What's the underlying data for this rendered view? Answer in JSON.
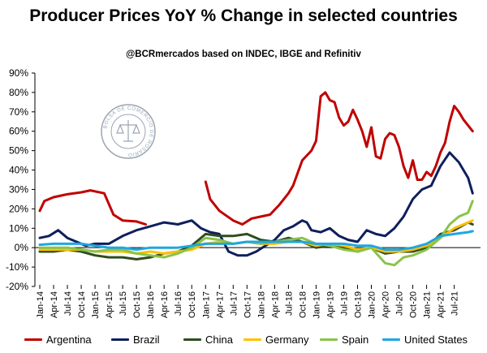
{
  "title": "Producer Prices YoY % Change in selected countries",
  "subtitle": "@BCRmercados based on INDEC, IBGE and Refinitiv",
  "chart_data": {
    "type": "line",
    "title": "Producer Prices YoY % Change in selected countries",
    "ylim": [
      -20,
      90
    ],
    "y_ticks": [
      "-20%",
      "-10%",
      "0%",
      "10%",
      "20%",
      "30%",
      "40%",
      "50%",
      "60%",
      "70%",
      "80%",
      "90%"
    ],
    "x_ticks": [
      "Jan-14",
      "Apr-14",
      "Jul-14",
      "Oct-14",
      "Jan-15",
      "Apr-15",
      "Jul-15",
      "Oct-15",
      "Jan-16",
      "Apr-16",
      "Jul-16",
      "Oct-16",
      "Jan-17",
      "Apr-17",
      "Jul-17",
      "Oct-17",
      "Jan-18",
      "Apr-18",
      "Jul-18",
      "Oct-18",
      "Jan-19",
      "Apr-19",
      "Jul-19",
      "Oct-19",
      "Jan-20",
      "Apr-20",
      "Jul-20",
      "Oct-20",
      "Jan-21",
      "Apr-21",
      "Jul-21"
    ],
    "grid": false,
    "legend_position": "bottom",
    "series": [
      {
        "name": "Argentina",
        "color": "#c00000",
        "points": [
          [
            "Jan-14",
            19
          ],
          [
            "Feb-14",
            24
          ],
          [
            "Apr-14",
            26
          ],
          [
            "Jul-14",
            27.5
          ],
          [
            "Oct-14",
            28.5
          ],
          [
            "Dec-14",
            29.5
          ],
          [
            "Mar-15",
            28
          ],
          [
            "May-15",
            17
          ],
          [
            "Jul-15",
            14
          ],
          [
            "Oct-15",
            13.5
          ],
          [
            "Dec-15",
            12
          ],
          [
            "Jan-17",
            34
          ],
          [
            "Feb-17",
            25
          ],
          [
            "Apr-17",
            19
          ],
          [
            "Jul-17",
            14
          ],
          [
            "Sep-17",
            12
          ],
          [
            "Nov-17",
            15
          ],
          [
            "Jan-18",
            16
          ],
          [
            "Mar-18",
            17
          ],
          [
            "May-18",
            22
          ],
          [
            "Jul-18",
            28
          ],
          [
            "Aug-18",
            32
          ],
          [
            "Oct-18",
            45
          ],
          [
            "Dec-18",
            50
          ],
          [
            "Jan-19",
            55
          ],
          [
            "Feb-19",
            78
          ],
          [
            "Mar-19",
            80
          ],
          [
            "Apr-19",
            76
          ],
          [
            "May-19",
            75
          ],
          [
            "Jun-19",
            67
          ],
          [
            "Jul-19",
            63
          ],
          [
            "Aug-19",
            65
          ],
          [
            "Sep-19",
            71
          ],
          [
            "Oct-19",
            66
          ],
          [
            "Nov-19",
            60
          ],
          [
            "Dec-19",
            52
          ],
          [
            "Jan-20",
            62
          ],
          [
            "Feb-20",
            47
          ],
          [
            "Mar-20",
            46
          ],
          [
            "Apr-20",
            56
          ],
          [
            "May-20",
            59
          ],
          [
            "Jun-20",
            58
          ],
          [
            "Jul-20",
            52
          ],
          [
            "Aug-20",
            42
          ],
          [
            "Sep-20",
            36
          ],
          [
            "Oct-20",
            45
          ],
          [
            "Nov-20",
            35
          ],
          [
            "Dec-20",
            35
          ],
          [
            "Jan-21",
            39
          ],
          [
            "Feb-21",
            37
          ],
          [
            "Mar-21",
            42
          ],
          [
            "Apr-21",
            49
          ],
          [
            "May-21",
            54
          ],
          [
            "Jun-21",
            65
          ],
          [
            "Jul-21",
            73
          ],
          [
            "Aug-21",
            70
          ],
          [
            "Sep-21",
            66
          ],
          [
            "Oct-21",
            63
          ],
          [
            "Nov-21",
            60
          ]
        ]
      },
      {
        "name": "Brazil",
        "color": "#0f1f5c",
        "points": [
          [
            "Jan-14",
            5
          ],
          [
            "Mar-14",
            6
          ],
          [
            "May-14",
            9
          ],
          [
            "Jul-14",
            5
          ],
          [
            "Sep-14",
            3
          ],
          [
            "Nov-14",
            1
          ],
          [
            "Jan-15",
            2
          ],
          [
            "Apr-15",
            2
          ],
          [
            "Jul-15",
            6
          ],
          [
            "Oct-15",
            9
          ],
          [
            "Jan-16",
            11
          ],
          [
            "Apr-16",
            13
          ],
          [
            "Jul-16",
            12
          ],
          [
            "Oct-16",
            14
          ],
          [
            "Dec-16",
            10
          ],
          [
            "Feb-17",
            8
          ],
          [
            "Apr-17",
            7
          ],
          [
            "Jun-17",
            -2
          ],
          [
            "Aug-17",
            -4
          ],
          [
            "Oct-17",
            -4
          ],
          [
            "Dec-17",
            -2
          ],
          [
            "Feb-18",
            1
          ],
          [
            "Apr-18",
            4
          ],
          [
            "Jun-18",
            9
          ],
          [
            "Aug-18",
            11
          ],
          [
            "Oct-18",
            14
          ],
          [
            "Nov-18",
            13
          ],
          [
            "Dec-18",
            9
          ],
          [
            "Feb-19",
            8
          ],
          [
            "Apr-19",
            10
          ],
          [
            "Jun-19",
            6
          ],
          [
            "Aug-19",
            4
          ],
          [
            "Oct-19",
            3
          ],
          [
            "Dec-19",
            9
          ],
          [
            "Feb-20",
            7
          ],
          [
            "Apr-20",
            6
          ],
          [
            "Jun-20",
            10
          ],
          [
            "Aug-20",
            16
          ],
          [
            "Oct-20",
            25
          ],
          [
            "Dec-20",
            30
          ],
          [
            "Feb-21",
            32
          ],
          [
            "Apr-21",
            42
          ],
          [
            "Jun-21",
            49
          ],
          [
            "Aug-21",
            44
          ],
          [
            "Oct-21",
            36
          ],
          [
            "Nov-21",
            28
          ]
        ]
      },
      {
        "name": "China",
        "color": "#2e4d1f",
        "points": [
          [
            "Jan-14",
            -2
          ],
          [
            "Apr-14",
            -2
          ],
          [
            "Jul-14",
            -1
          ],
          [
            "Oct-14",
            -2
          ],
          [
            "Jan-15",
            -4
          ],
          [
            "Apr-15",
            -5
          ],
          [
            "Jul-15",
            -5
          ],
          [
            "Oct-15",
            -6
          ],
          [
            "Jan-16",
            -5
          ],
          [
            "Apr-16",
            -3
          ],
          [
            "Jul-16",
            -2
          ],
          [
            "Oct-16",
            1
          ],
          [
            "Jan-17",
            7
          ],
          [
            "Apr-17",
            6
          ],
          [
            "Jul-17",
            6
          ],
          [
            "Oct-17",
            7
          ],
          [
            "Jan-18",
            4
          ],
          [
            "Apr-18",
            3
          ],
          [
            "Jul-18",
            5
          ],
          [
            "Oct-18",
            3
          ],
          [
            "Jan-19",
            0
          ],
          [
            "Apr-19",
            1
          ],
          [
            "Jul-19",
            0
          ],
          [
            "Oct-19",
            -2
          ],
          [
            "Jan-20",
            0
          ],
          [
            "Apr-20",
            -3
          ],
          [
            "Jul-20",
            -2
          ],
          [
            "Oct-20",
            -2
          ],
          [
            "Jan-21",
            0
          ],
          [
            "Apr-21",
            7
          ],
          [
            "Jul-21",
            9
          ],
          [
            "Oct-21",
            13
          ],
          [
            "Nov-21",
            12
          ]
        ]
      },
      {
        "name": "Germany",
        "color": "#ffc000",
        "points": [
          [
            "Jan-14",
            -1
          ],
          [
            "Apr-14",
            -1
          ],
          [
            "Jul-14",
            -1
          ],
          [
            "Oct-14",
            -1
          ],
          [
            "Jan-15",
            -2
          ],
          [
            "Apr-15",
            -2
          ],
          [
            "Jul-15",
            -2
          ],
          [
            "Oct-15",
            -3
          ],
          [
            "Jan-16",
            -2
          ],
          [
            "Apr-16",
            -3
          ],
          [
            "Jul-16",
            -2
          ],
          [
            "Oct-16",
            -1
          ],
          [
            "Jan-17",
            2
          ],
          [
            "Apr-17",
            3
          ],
          [
            "Jul-17",
            2
          ],
          [
            "Oct-17",
            3
          ],
          [
            "Jan-18",
            2
          ],
          [
            "Apr-18",
            2
          ],
          [
            "Jul-18",
            3
          ],
          [
            "Oct-18",
            3
          ],
          [
            "Jan-19",
            1
          ],
          [
            "Apr-19",
            2
          ],
          [
            "Jul-19",
            1
          ],
          [
            "Oct-19",
            -1
          ],
          [
            "Jan-20",
            0
          ],
          [
            "Apr-20",
            -2
          ],
          [
            "Jul-20",
            -2
          ],
          [
            "Oct-20",
            -1
          ],
          [
            "Jan-21",
            1
          ],
          [
            "Apr-21",
            5
          ],
          [
            "Jul-21",
            10
          ],
          [
            "Oct-21",
            13
          ],
          [
            "Nov-21",
            14
          ]
        ]
      },
      {
        "name": "Spain",
        "color": "#8ac34a",
        "points": [
          [
            "Jan-14",
            0
          ],
          [
            "Apr-14",
            0
          ],
          [
            "Jul-14",
            0
          ],
          [
            "Oct-14",
            -1
          ],
          [
            "Jan-15",
            -2
          ],
          [
            "Apr-15",
            -1
          ],
          [
            "Jul-15",
            -1
          ],
          [
            "Oct-15",
            -3
          ],
          [
            "Jan-16",
            -4
          ],
          [
            "Apr-16",
            -5
          ],
          [
            "Jul-16",
            -3
          ],
          [
            "Oct-16",
            0
          ],
          [
            "Jan-17",
            5
          ],
          [
            "Apr-17",
            4
          ],
          [
            "Jul-17",
            2
          ],
          [
            "Oct-17",
            3
          ],
          [
            "Jan-18",
            2
          ],
          [
            "Apr-18",
            3
          ],
          [
            "Jul-18",
            4
          ],
          [
            "Oct-18",
            5
          ],
          [
            "Jan-19",
            2
          ],
          [
            "Apr-19",
            1
          ],
          [
            "Jul-19",
            -1
          ],
          [
            "Oct-19",
            -2
          ],
          [
            "Jan-20",
            0
          ],
          [
            "Apr-20",
            -8
          ],
          [
            "Jun-20",
            -9
          ],
          [
            "Aug-20",
            -5
          ],
          [
            "Oct-20",
            -4
          ],
          [
            "Jan-21",
            -1
          ],
          [
            "Apr-21",
            5
          ],
          [
            "Jun-21",
            12
          ],
          [
            "Aug-21",
            16
          ],
          [
            "Oct-21",
            18
          ],
          [
            "Nov-21",
            24
          ]
        ]
      },
      {
        "name": "United States",
        "color": "#1ea7e1",
        "points": [
          [
            "Jan-14",
            1.5
          ],
          [
            "Apr-14",
            2
          ],
          [
            "Jul-14",
            2
          ],
          [
            "Oct-14",
            2
          ],
          [
            "Jan-15",
            1
          ],
          [
            "Apr-15",
            0
          ],
          [
            "Jul-15",
            0
          ],
          [
            "Oct-15",
            -1
          ],
          [
            "Jan-16",
            0
          ],
          [
            "Apr-16",
            0
          ],
          [
            "Jul-16",
            0
          ],
          [
            "Oct-16",
            1
          ],
          [
            "Jan-17",
            2
          ],
          [
            "Apr-17",
            2
          ],
          [
            "Jul-17",
            2
          ],
          [
            "Oct-17",
            3
          ],
          [
            "Jan-18",
            3
          ],
          [
            "Apr-18",
            3
          ],
          [
            "Jul-18",
            3
          ],
          [
            "Oct-18",
            3
          ],
          [
            "Jan-19",
            2
          ],
          [
            "Apr-19",
            2
          ],
          [
            "Jul-19",
            2
          ],
          [
            "Oct-19",
            1
          ],
          [
            "Jan-20",
            1
          ],
          [
            "Apr-20",
            -1
          ],
          [
            "Jul-20",
            -1
          ],
          [
            "Oct-20",
            0
          ],
          [
            "Jan-21",
            2
          ],
          [
            "Apr-21",
            6
          ],
          [
            "Jul-21",
            7
          ],
          [
            "Oct-21",
            8
          ],
          [
            "Nov-21",
            8.5
          ]
        ]
      }
    ]
  }
}
